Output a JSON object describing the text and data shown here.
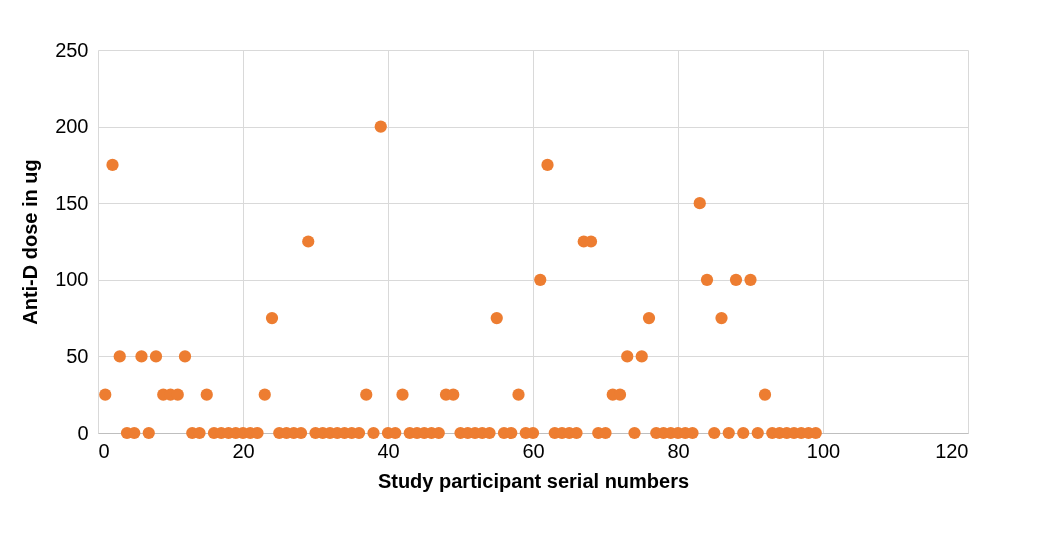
{
  "chart_data": {
    "type": "scatter",
    "xlabel": "Study participant serial numbers",
    "ylabel": "Anti-D dose in ug",
    "x": [
      1,
      2,
      3,
      4,
      5,
      6,
      7,
      8,
      9,
      10,
      11,
      12,
      13,
      14,
      15,
      16,
      17,
      18,
      19,
      20,
      21,
      22,
      23,
      24,
      25,
      26,
      27,
      28,
      29,
      30,
      31,
      32,
      33,
      34,
      35,
      36,
      37,
      38,
      39,
      40,
      41,
      42,
      43,
      44,
      45,
      46,
      47,
      48,
      49,
      50,
      51,
      52,
      53,
      54,
      55,
      56,
      57,
      58,
      59,
      60,
      61,
      62,
      63,
      64,
      65,
      66,
      67,
      68,
      69,
      70,
      71,
      72,
      73,
      74,
      75,
      76,
      77,
      78,
      79,
      80,
      81,
      82,
      83,
      84,
      85,
      86,
      87,
      88,
      89,
      90,
      91,
      92,
      93,
      94,
      95,
      96,
      97,
      98,
      99
    ],
    "series": [
      {
        "color": "#ed7d31",
        "values": [
          25,
          175,
          50,
          0,
          0,
          50,
          0,
          50,
          25,
          25,
          25,
          50,
          0,
          0,
          25,
          0,
          0,
          0,
          0,
          0,
          0,
          0,
          25,
          75,
          0,
          0,
          0,
          0,
          125,
          0,
          0,
          0,
          0,
          0,
          0,
          0,
          25,
          0,
          200,
          0,
          0,
          25,
          0,
          0,
          0,
          0,
          0,
          25,
          25,
          0,
          0,
          0,
          0,
          0,
          75,
          0,
          0,
          25,
          0,
          0,
          100,
          175,
          0,
          0,
          0,
          0,
          125,
          125,
          0,
          0,
          25,
          25,
          50,
          0,
          50,
          75,
          0,
          0,
          0,
          0,
          0,
          0,
          150,
          100,
          0,
          75,
          0,
          100,
          0,
          100,
          0,
          25,
          0,
          0,
          0,
          0,
          0,
          0,
          0
        ]
      }
    ],
    "xlim": [
      0,
      120
    ],
    "xticks": [
      0,
      20,
      40,
      60,
      80,
      100,
      120
    ],
    "ylim": [
      0,
      250
    ],
    "yticks": [
      0,
      50,
      100,
      150,
      200,
      250
    ],
    "grid": true,
    "marker": "circle"
  }
}
